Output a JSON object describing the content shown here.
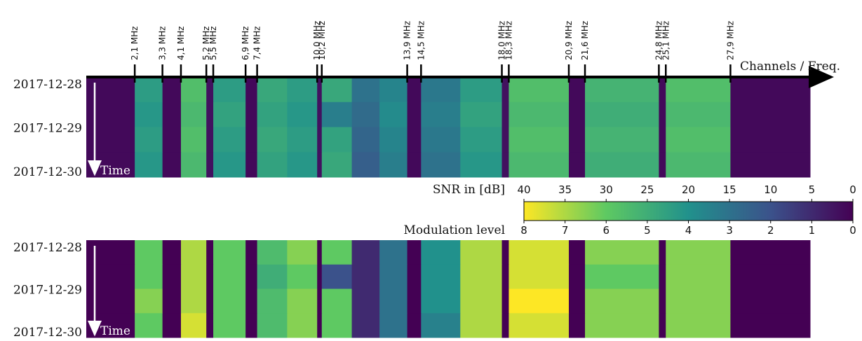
{
  "chart_data": {
    "type": "heatmap",
    "xlabel": "Channels / Freq.",
    "time_label": "Time",
    "xlim": [
      0,
      31.35
    ],
    "xticks": [
      {
        "value": 2.1,
        "label": "2,1 MHz"
      },
      {
        "value": 3.3,
        "label": "3,3 MHz"
      },
      {
        "value": 4.1,
        "label": "4,1 MHz"
      },
      {
        "value": 5.2,
        "label": "5,2 MHz"
      },
      {
        "value": 5.5,
        "label": "5,5 MHz"
      },
      {
        "value": 6.9,
        "label": "6,9 MHz"
      },
      {
        "value": 7.4,
        "label": "7,4 MHz"
      },
      {
        "value": 10.0,
        "label": "10,0 MHz"
      },
      {
        "value": 10.2,
        "label": "10,2 MHz"
      },
      {
        "value": 13.9,
        "label": "13,9 MHz"
      },
      {
        "value": 14.5,
        "label": "14,5 MHz"
      },
      {
        "value": 18.0,
        "label": "18,0 MHz"
      },
      {
        "value": 18.3,
        "label": "18,3 MHz"
      },
      {
        "value": 20.9,
        "label": "20,9 MHz"
      },
      {
        "value": 21.6,
        "label": "21,6 MHz"
      },
      {
        "value": 24.8,
        "label": "24,8 MHz"
      },
      {
        "value": 25.1,
        "label": "25,1 MHz"
      },
      {
        "value": 27.9,
        "label": "27,9 MHz"
      }
    ],
    "x_bins": [
      0,
      2.1,
      3.3,
      4.1,
      5.2,
      5.5,
      6.9,
      7.4,
      8.7,
      10.0,
      10.2,
      11.5,
      12.7,
      13.9,
      14.5,
      16.2,
      18.0,
      18.3,
      20.9,
      21.6,
      24.8,
      25.1,
      27.9,
      31.35
    ],
    "dates": [
      "2017-12-28",
      "2017-12-29",
      "2017-12-30"
    ],
    "colormap": [
      "#440154",
      "#3b528b",
      "#21918c",
      "#5ec962",
      "#fde725"
    ],
    "heatmaps": [
      {
        "colorbar_label": "SNR in [dB]",
        "zlim": [
          0,
          40
        ],
        "zticks": [
          40,
          35,
          30,
          25,
          20,
          15,
          10,
          5,
          0
        ],
        "z": [
          [
            1,
            22,
            1,
            28,
            2,
            22,
            1,
            24,
            22,
            2,
            24,
            15,
            18,
            1,
            16,
            22,
            2,
            28,
            1,
            26,
            1,
            28,
            1
          ],
          [
            1,
            21,
            1,
            27,
            2,
            23,
            1,
            23,
            21,
            2,
            17,
            14,
            19,
            1,
            17,
            23,
            2,
            27,
            1,
            25,
            1,
            27,
            1
          ],
          [
            1,
            22,
            1,
            28,
            2,
            22,
            1,
            24,
            22,
            2,
            23,
            13,
            18,
            1,
            16,
            22,
            2,
            28,
            1,
            26,
            1,
            28,
            1
          ],
          [
            1,
            21,
            1,
            27,
            2,
            21,
            1,
            23,
            21,
            2,
            24,
            12,
            17,
            1,
            15,
            21,
            2,
            27,
            1,
            25,
            1,
            27,
            1
          ]
        ]
      },
      {
        "colorbar_label": "Modulation level",
        "zlim": [
          0,
          8
        ],
        "zticks": [
          8,
          7,
          6,
          5,
          4,
          3,
          2,
          1,
          0
        ],
        "z": [
          [
            0,
            6,
            0,
            7,
            0,
            6,
            0,
            5.5,
            6.5,
            0,
            6,
            1,
            3,
            0,
            4,
            7,
            0,
            7.5,
            0,
            6.5,
            0,
            6.5,
            0
          ],
          [
            0,
            6,
            0,
            7,
            0,
            6,
            0,
            5,
            6,
            0,
            2,
            1,
            3,
            0,
            4,
            7,
            0,
            7.5,
            0,
            6,
            0,
            6.5,
            0
          ],
          [
            0,
            6.5,
            0,
            7,
            0,
            6,
            0,
            5.5,
            6.5,
            0,
            6,
            1,
            3,
            0,
            4,
            7,
            0,
            8,
            0,
            6.5,
            0,
            6.5,
            0
          ],
          [
            0,
            6,
            0,
            7.5,
            0,
            6,
            0,
            5.5,
            6.5,
            0,
            6,
            1,
            3,
            0,
            3.5,
            7,
            0,
            7.5,
            0,
            6.5,
            0,
            6.5,
            0
          ]
        ]
      }
    ]
  }
}
